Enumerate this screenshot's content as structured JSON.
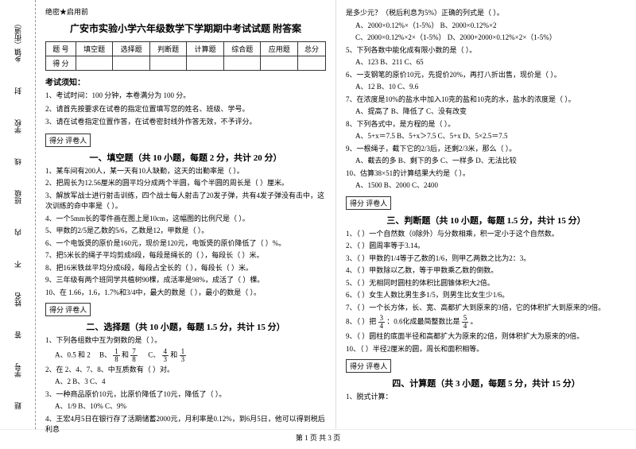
{
  "secret": "绝密★启用前",
  "title": "广安市实验小学六年级数学下学期期中考试试题 附答案",
  "sidebar": {
    "f1": "乡镇（街道）",
    "f2": "学校",
    "f3": "班级",
    "f4": "姓名",
    "f5": "学号",
    "m1": "封",
    "m2": "线",
    "m3": "内",
    "m4": "不",
    "m5": "答",
    "m6": "题"
  },
  "scoreTable": {
    "h1": "题 号",
    "h2": "填空题",
    "h3": "选择题",
    "h4": "判断题",
    "h5": "计算题",
    "h6": "综合题",
    "h7": "应用题",
    "h8": "总分",
    "r1": "得 分"
  },
  "notice": {
    "title": "考试须知：",
    "i1": "1、考试时间：100 分钟，本卷满分为 100 分。",
    "i2": "2、请首先按要求在试卷的指定位置填写您的姓名、班级、学号。",
    "i3": "3、请在试卷指定位置作答，在试卷密封线外作答无效，不予评分。"
  },
  "s1": {
    "header": "得分  评卷人",
    "title": "一、填空题（共 10 小题，每题 2 分，共计 20 分）",
    "q1": "1、某车间有200人，某一天有10人缺勤，这天的出勤率是（    ）。",
    "q2": "2、把周长为12.56厘米的圆平均分成两个半圆，每个半圆的周长是（    ）厘米。",
    "q3": "3、解放军战士进行射击训练，四个战士每人射击了20发子弹，共有4发子弹没有击中，这次训练的命中率是（    ）。",
    "q4": "4、一个5mm长的零件画在图上是10cm，这幅图的比例尺是（    ）。",
    "q5": "5、甲数的2/5是乙数的5/6，乙数是12，甲数是（    ）。",
    "q6": "6、一个电饭煲的原价是160元，现价是120元，电饭煲的原价降低了（    ）%。",
    "q7": "7、把5米长的绳子平均剪成8段，每段是绳长的（    ），每段长（    ）米。",
    "q8": "8、把16米铁丝平均分成6段，每段占全长的（    ），每段长（    ）米。",
    "q9": "9、三年级有两个班同学共植树90棵，成活率是98%，成活了（    ）棵。",
    "q10": "10、在 1.66，1.6，1.7%和3/4中，最大的数是（    ），最小的数是（    ）。"
  },
  "s2": {
    "header": "得分  评卷人",
    "title": "二、选择题（共 10 小题，每题 1.5 分，共计 15 分）",
    "q1": "1、下列各组数中互为倒数的是（    ）。",
    "q1a": "A、0.5 和 2",
    "q1b": "B、",
    "q1b2": "和",
    "q1c": "C、",
    "q1c2": "和",
    "q2": "2、在 2、4、7、8、中互质数有（    ）对。",
    "q2a": "A、2      B、3      C、4",
    "q3": "3、一种商品原价10元，比原价降低了10元，降低了（    ）。",
    "q3a": "A、1/9      B、10%      C、9%",
    "q4": "4、王宏4月5日在银行存了活期储蓄2000元，月利率是0.12%，到6月5日，他可以得到税后利息"
  },
  "s2r": {
    "q4b": "是多少元？（税后利息为5%）正确的列式是（    ）。",
    "q4ba": "A、2000×0.12%×（1-5%）          B、2000×0.12%×2",
    "q4bc": "C、2000×0.12%×2×（1-5%）      D、2000+2000×0.12%×2×（1-5%）",
    "q5": "5、下列各数中能化成有限小数的是（    ）。",
    "q5a": "A、123      B、211      C、65",
    "q6": "6、一支钢笔的原价10元，先提价20%，再打八折出售，现价是（    ）。",
    "q6a": "A、12      B、10      C、9.6",
    "q7": "7、在浓度是10%的盐水中加入10克的盐和10克的水，盐水的浓度是（    ）。",
    "q7a": "A、提高了      B、降低了      C、没有改变",
    "q8": "8、下列各式中，是方程的是（    ）。",
    "q8a": "A、5+x＝7.5      B、5+x＞7.5      C、5+x      D、5×2.5＝7.5",
    "q9": "9、一根绳子，截下它的2/3后，还剩2/3米，那么（    ）。",
    "q9a": "A、截去的多      B、剩下的多      C、一样多      D、无法比较",
    "q10": "10、估算38×51的计算结果大约是（    ）。",
    "q10a": "A、1500      B、2000      C、2400"
  },
  "s3": {
    "header": "得分  评卷人",
    "title": "三、判断题（共 10 小题，每题 1.5 分，共计 15 分）",
    "q1": "1、（    ）一个自然数（0除外）与分数相乘，积一定小于这个自然数。",
    "q2": "2、（    ）圆周率等于3.14。",
    "q3": "3、（    ）甲数的1/4等于乙数的1/6，则甲乙两数之比为2：3。",
    "q4": "4、（    ）甲数除以乙数，等于甲数乘乙数的倒数。",
    "q5": "5、（    ）无相同时圆柱的体积比圆锥体积大2倍。",
    "q6": "6、（    ）女生人数比男生多1/5，则男生比女生少1/6。",
    "q7": "7、（    ）一个长方体，长、宽、高都扩大到原来的3倍，它的体积扩大到原来的9倍。",
    "q8": "8、（    ）把",
    "q8b": "：0.6化成最简整数比是",
    "q8c": "。",
    "q9": "9、（    ）圆柱的底面半径和高都扩大为原来的2倍，则体积扩大为原来的9倍。",
    "q10": "10、（    ）半径2厘米的圆，周长和面积相等。"
  },
  "s4": {
    "header": "得分  评卷人",
    "title": "四、计算题（共 3 小题，每题 5 分，共计 15 分）",
    "q1": "1、脱式计算："
  },
  "footer": "第 1 页 共 3 页",
  "frac": {
    "n1": "1",
    "d1": "8",
    "n7": "7",
    "d8": "8",
    "n4": "4",
    "d3": "3",
    "n1b": "1",
    "d3b": "3",
    "n3": "3",
    "d4": "4",
    "n5": "5",
    "d4b": "4"
  }
}
